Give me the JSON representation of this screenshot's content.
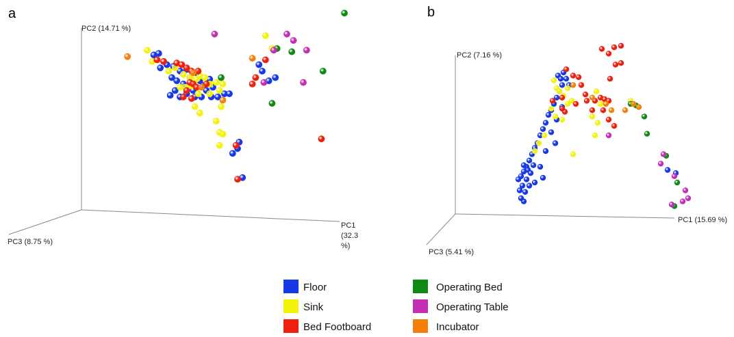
{
  "colors": {
    "Floor": "#1638e6",
    "Sink": "#f2f20a",
    "Bed Footboard": "#f01e0c",
    "Operating Bed": "#0e8a14",
    "Operating Table": "#c22fb4",
    "Incubator": "#f57f0b"
  },
  "legend": [
    "Floor",
    "Sink",
    "Bed Footboard",
    "Operating Bed",
    "Operating Table",
    "Incubator"
  ],
  "chart_data": [
    {
      "type": "scatter",
      "panel": "a",
      "projection": "3d",
      "axes": {
        "x": {
          "label": "PC1",
          "label_pct": "(32.3",
          "label_pct_end": "%)"
        },
        "y": {
          "label": "PC2 (14.71 %)"
        },
        "z": {
          "label": "PC3 (8.75 %)"
        }
      },
      "series": [
        {
          "name": "Floor",
          "points": [
            [
              0.44,
              0.96
            ],
            [
              0.47,
              0.97
            ],
            [
              0.52,
              0.9
            ],
            [
              0.56,
              0.89
            ],
            [
              0.6,
              0.86
            ],
            [
              0.64,
              0.87
            ],
            [
              0.7,
              0.85
            ],
            [
              0.48,
              0.88
            ],
            [
              0.55,
              0.82
            ],
            [
              0.58,
              0.8
            ],
            [
              0.62,
              0.78
            ],
            [
              0.66,
              0.82
            ],
            [
              0.72,
              0.8
            ],
            [
              0.74,
              0.77
            ],
            [
              0.78,
              0.81
            ],
            [
              0.8,
              0.76
            ],
            [
              0.76,
              0.74
            ],
            [
              0.68,
              0.74
            ],
            [
              0.64,
              0.72
            ],
            [
              0.6,
              0.7
            ],
            [
              0.57,
              0.74
            ],
            [
              0.54,
              0.71
            ],
            [
              0.69,
              0.7
            ],
            [
              0.73,
              0.7
            ],
            [
              0.79,
              0.7
            ],
            [
              0.83,
              0.7
            ],
            [
              0.87,
              0.72
            ],
            [
              0.9,
              0.72
            ],
            [
              1.08,
              0.9
            ],
            [
              1.1,
              0.86
            ],
            [
              1.14,
              0.8
            ],
            [
              1.18,
              0.82
            ],
            [
              0.96,
              0.42
            ],
            [
              0.95,
              0.38
            ],
            [
              0.98,
              0.2
            ],
            [
              0.92,
              0.35
            ]
          ]
        },
        {
          "name": "Sink",
          "points": [
            [
              0.4,
              0.99
            ],
            [
              0.43,
              0.92
            ],
            [
              0.53,
              0.86
            ],
            [
              0.57,
              0.88
            ],
            [
              0.62,
              0.84
            ],
            [
              0.66,
              0.82
            ],
            [
              0.7,
              0.81
            ],
            [
              0.72,
              0.83
            ],
            [
              0.75,
              0.82
            ],
            [
              0.78,
              0.78
            ],
            [
              0.82,
              0.79
            ],
            [
              0.86,
              0.78
            ],
            [
              0.84,
              0.74
            ],
            [
              0.78,
              0.72
            ],
            [
              0.71,
              0.72
            ],
            [
              0.67,
              0.77
            ],
            [
              0.63,
              0.76
            ],
            [
              0.6,
              0.76
            ],
            [
              0.69,
              0.64
            ],
            [
              0.72,
              0.6
            ],
            [
              0.85,
              0.64
            ],
            [
              0.82,
              0.55
            ],
            [
              0.84,
              0.48
            ],
            [
              0.86,
              0.47
            ],
            [
              0.84,
              0.4
            ],
            [
              1.12,
              1.08
            ],
            [
              1.16,
              1.0
            ]
          ]
        },
        {
          "name": "Bed Footboard",
          "points": [
            [
              0.46,
              0.93
            ],
            [
              0.5,
              0.92
            ],
            [
              0.58,
              0.91
            ],
            [
              0.61,
              0.9
            ],
            [
              0.64,
              0.88
            ],
            [
              0.67,
              0.86
            ],
            [
              0.71,
              0.86
            ],
            [
              0.66,
              0.79
            ],
            [
              0.68,
              0.78
            ],
            [
              0.7,
              0.76
            ],
            [
              0.76,
              0.78
            ],
            [
              0.64,
              0.74
            ],
            [
              0.62,
              0.7
            ],
            [
              0.67,
              0.69
            ],
            [
              0.94,
              0.4
            ],
            [
              0.95,
              0.19
            ],
            [
              1.12,
              0.93
            ],
            [
              1.06,
              0.82
            ],
            [
              1.04,
              0.78
            ],
            [
              1.46,
              0.44
            ]
          ]
        },
        {
          "name": "Operating Bed",
          "points": [
            [
              0.85,
              0.82
            ],
            [
              1.19,
              1.0
            ],
            [
              1.28,
              0.98
            ],
            [
              1.47,
              0.86
            ],
            [
              1.16,
              0.66
            ],
            [
              1.6,
              1.22
            ]
          ]
        },
        {
          "name": "Operating Table",
          "points": [
            [
              0.81,
              1.09
            ],
            [
              1.25,
              1.09
            ],
            [
              1.29,
              1.05
            ],
            [
              1.17,
              0.99
            ],
            [
              1.37,
              0.99
            ],
            [
              1.35,
              0.79
            ],
            [
              1.11,
              0.79
            ]
          ]
        },
        {
          "name": "Incubator",
          "points": [
            [
              0.28,
              0.95
            ],
            [
              0.68,
              0.85
            ],
            [
              0.73,
              0.76
            ],
            [
              0.86,
              0.68
            ],
            [
              1.04,
              0.94
            ]
          ]
        }
      ]
    },
    {
      "type": "scatter",
      "panel": "b",
      "projection": "3d",
      "axes": {
        "x": {
          "label": "PC1 (15.69 %)"
        },
        "y": {
          "label": "PC2 (7.16 %)"
        },
        "z": {
          "label": "PC3 (5.41 %)"
        }
      },
      "series": [
        {
          "name": "Floor",
          "points": [
            [
              0.75,
              0.88
            ],
            [
              0.77,
              0.86
            ],
            [
              0.79,
              0.9
            ],
            [
              0.81,
              0.86
            ],
            [
              0.78,
              0.82
            ],
            [
              0.76,
              0.78
            ],
            [
              0.74,
              0.74
            ],
            [
              0.72,
              0.7
            ],
            [
              0.7,
              0.66
            ],
            [
              0.68,
              0.63
            ],
            [
              0.66,
              0.58
            ],
            [
              0.64,
              0.54
            ],
            [
              0.62,
              0.5
            ],
            [
              0.6,
              0.45
            ],
            [
              0.58,
              0.42
            ],
            [
              0.56,
              0.38
            ],
            [
              0.54,
              0.34
            ],
            [
              0.52,
              0.3
            ],
            [
              0.5,
              0.27
            ],
            [
              0.48,
              0.24
            ],
            [
              0.46,
              0.22
            ],
            [
              0.5,
              0.31
            ],
            [
              0.53,
              0.28
            ],
            [
              0.57,
              0.31
            ],
            [
              0.55,
              0.26
            ],
            [
              0.52,
              0.22
            ],
            [
              0.49,
              0.18
            ],
            [
              0.47,
              0.15
            ],
            [
              0.51,
              0.14
            ],
            [
              0.54,
              0.18
            ],
            [
              0.58,
              0.2
            ],
            [
              0.62,
              0.3
            ],
            [
              0.66,
              0.4
            ],
            [
              0.7,
              0.52
            ],
            [
              0.74,
              0.6
            ],
            [
              0.78,
              0.68
            ],
            [
              0.64,
              0.23
            ],
            [
              0.73,
              0.45
            ],
            [
              0.83,
              0.82
            ],
            [
              1.55,
              0.28
            ],
            [
              1.61,
              0.26
            ],
            [
              0.5,
              0.08
            ],
            [
              0.48,
              0.1
            ]
          ]
        },
        {
          "name": "Sink",
          "points": [
            [
              0.72,
              0.85
            ],
            [
              0.74,
              0.8
            ],
            [
              0.76,
              0.78
            ],
            [
              0.79,
              0.75
            ],
            [
              0.82,
              0.8
            ],
            [
              0.7,
              0.67
            ],
            [
              0.73,
              0.62
            ],
            [
              0.78,
              0.6
            ],
            [
              0.65,
              0.5
            ],
            [
              0.61,
              0.45
            ],
            [
              0.58,
              0.4
            ],
            [
              0.82,
              0.7
            ],
            [
              0.85,
              0.72
            ],
            [
              1.0,
              0.62
            ],
            [
              1.04,
              0.58
            ],
            [
              0.86,
              0.38
            ],
            [
              1.03,
              0.78
            ],
            [
              1.06,
              0.7
            ],
            [
              1.02,
              0.5
            ],
            [
              1.28,
              0.72
            ]
          ]
        },
        {
          "name": "Bed Footboard",
          "points": [
            [
              0.81,
              0.92
            ],
            [
              0.86,
              0.88
            ],
            [
              0.9,
              0.87
            ],
            [
              0.92,
              0.82
            ],
            [
              0.95,
              0.76
            ],
            [
              0.8,
              0.65
            ],
            [
              0.88,
              0.7
            ],
            [
              0.96,
              0.72
            ],
            [
              1.02,
              0.72
            ],
            [
              1.06,
              0.74
            ],
            [
              1.09,
              0.73
            ],
            [
              1.12,
              0.72
            ],
            [
              1.0,
              0.66
            ],
            [
              1.08,
              0.66
            ],
            [
              1.12,
              0.6
            ],
            [
              1.16,
              0.56
            ],
            [
              0.78,
              0.74
            ],
            [
              0.71,
              0.72
            ],
            [
              1.07,
              1.05
            ],
            [
              1.12,
              1.02
            ],
            [
              1.16,
              1.06
            ],
            [
              1.21,
              1.07
            ],
            [
              1.17,
              0.95
            ],
            [
              1.21,
              0.96
            ],
            [
              1.13,
              0.86
            ],
            [
              0.78,
              0.67
            ]
          ]
        },
        {
          "name": "Operating Bed",
          "points": [
            [
              1.28,
              0.7
            ],
            [
              1.32,
              0.69
            ],
            [
              1.38,
              0.62
            ],
            [
              1.4,
              0.51
            ],
            [
              1.54,
              0.37
            ],
            [
              1.62,
              0.2
            ],
            [
              1.6,
              0.05
            ]
          ]
        },
        {
          "name": "Operating Table",
          "points": [
            [
              1.12,
              0.5
            ],
            [
              1.52,
              0.38
            ],
            [
              1.5,
              0.32
            ],
            [
              1.6,
              0.24
            ],
            [
              1.68,
              0.15
            ],
            [
              1.7,
              0.1
            ],
            [
              1.66,
              0.08
            ],
            [
              1.58,
              0.06
            ]
          ]
        },
        {
          "name": "Incubator",
          "points": [
            [
              0.86,
              0.82
            ],
            [
              1.0,
              0.74
            ],
            [
              1.14,
              0.66
            ],
            [
              1.24,
              0.66
            ],
            [
              1.3,
              0.7
            ],
            [
              1.34,
              0.68
            ],
            [
              1.1,
              0.7
            ]
          ]
        }
      ]
    }
  ],
  "panels": {
    "a": "a",
    "b": "b"
  }
}
